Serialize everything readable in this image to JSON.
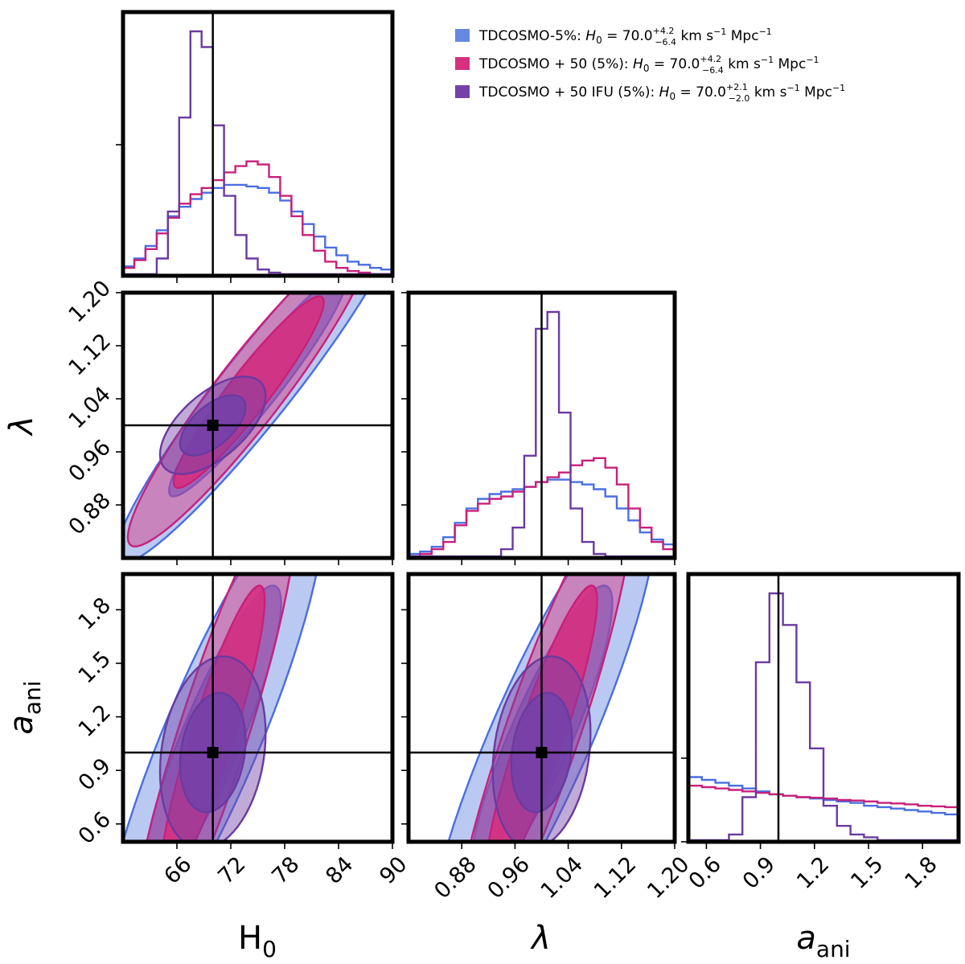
{
  "chart_data": {
    "type": "corner",
    "parameters": [
      "H0",
      "lambda",
      "a_ani"
    ],
    "axis_labels": {
      "H0": {
        "main": "H",
        "sub": "0",
        "italic": false
      },
      "lambda": {
        "main": "λ",
        "sub": "",
        "italic": true
      },
      "a_ani": {
        "main": "a",
        "sub": "ani",
        "italic": true
      }
    },
    "ranges": {
      "H0": [
        60,
        90
      ],
      "lambda": [
        0.8,
        1.2
      ],
      "a_ani": [
        0.5,
        2.0
      ]
    },
    "ticks": {
      "H0": [
        "66",
        "72",
        "78",
        "84",
        "90"
      ],
      "lambda": [
        "0.88",
        "0.96",
        "1.04",
        "1.12",
        "1.20"
      ],
      "a_ani": [
        "0.6",
        "0.9",
        "1.2",
        "1.5",
        "1.8"
      ]
    },
    "truth": {
      "H0": 70,
      "lambda": 1.0,
      "a_ani": 1.0
    },
    "series": [
      {
        "name": "TDCOSMO-5%",
        "legend_prefix": "TDCOSMO-5%: ",
        "h0": "70.0",
        "err_plus": "+4.2",
        "err_minus": "−6.4",
        "color": "#6688e0",
        "edge": "#4a6ee0",
        "hist": {
          "H0": {
            "edges": [
              60,
              90
            ],
            "counts": [
              0.05,
              0.1,
              0.18,
              0.28,
              0.37,
              0.43,
              0.48,
              0.52,
              0.55,
              0.57,
              0.57,
              0.56,
              0.55,
              0.52,
              0.47,
              0.4,
              0.32,
              0.24,
              0.17,
              0.12,
              0.08,
              0.06,
              0.04,
              0.03
            ]
          },
          "lambda": {
            "edges": [
              0.8,
              1.2
            ],
            "counts": [
              0.01,
              0.02,
              0.04,
              0.08,
              0.14,
              0.2,
              0.24,
              0.26,
              0.27,
              0.28,
              0.29,
              0.31,
              0.32,
              0.32,
              0.31,
              0.3,
              0.28,
              0.25,
              0.2,
              0.15,
              0.1,
              0.07,
              0.05
            ]
          },
          "a_ani": {
            "edges": [
              0.5,
              2.0
            ],
            "counts": [
              0.22,
              0.21,
              0.2,
              0.19,
              0.18,
              0.17,
              0.16,
              0.155,
              0.15,
              0.145,
              0.14,
              0.135,
              0.13,
              0.12,
              0.115,
              0.11,
              0.105,
              0.1,
              0.095,
              0.09
            ]
          }
        },
        "contours": {
          "H0_lambda": {
            "mx": 75,
            "my": 1.06,
            "sx": 6.5,
            "sy": 0.11,
            "rho": 0.95
          },
          "H0_a": {
            "mx": 70,
            "my": 1.1,
            "sx": 5.0,
            "sy": 0.55,
            "rho": 0.88
          },
          "lambda_a": {
            "mx": 1.0,
            "my": 1.1,
            "sx": 0.07,
            "sy": 0.55,
            "rho": 0.88
          }
        }
      },
      {
        "name": "TDCOSMO + 50 (5%)",
        "legend_prefix": "TDCOSMO + 50 (5%): ",
        "h0": "70.0",
        "err_plus": "+4.2",
        "err_minus": "−6.4",
        "color": "#d6307f",
        "edge": "#c8207a",
        "hist": {
          "H0": {
            "edges": [
              60,
              90
            ],
            "counts": [
              0.04,
              0.09,
              0.16,
              0.26,
              0.36,
              0.45,
              0.51,
              0.55,
              0.6,
              0.65,
              0.69,
              0.72,
              0.7,
              0.62,
              0.5,
              0.37,
              0.25,
              0.15,
              0.08,
              0.04,
              0.02,
              0.01,
              0.0,
              0.0
            ]
          },
          "lambda": {
            "edges": [
              0.8,
              1.2
            ],
            "counts": [
              0.0,
              0.01,
              0.03,
              0.06,
              0.13,
              0.19,
              0.22,
              0.24,
              0.25,
              0.27,
              0.29,
              0.31,
              0.33,
              0.35,
              0.38,
              0.4,
              0.41,
              0.37,
              0.3,
              0.2,
              0.12,
              0.06,
              0.03
            ]
          },
          "a_ani": {
            "edges": [
              0.5,
              2.0
            ],
            "counts": [
              0.19,
              0.185,
              0.18,
              0.175,
              0.17,
              0.165,
              0.16,
              0.155,
              0.15,
              0.148,
              0.145,
              0.14,
              0.138,
              0.135,
              0.13,
              0.128,
              0.125,
              0.12,
              0.118,
              0.115
            ]
          }
        },
        "contours": {
          "H0_lambda": {
            "mx": 74,
            "my": 1.05,
            "sx": 5.5,
            "sy": 0.095,
            "rho": 0.94
          },
          "H0_a": {
            "mx": 70,
            "my": 1.1,
            "sx": 3.8,
            "sy": 0.55,
            "rho": 0.9
          },
          "lambda_a": {
            "mx": 1.0,
            "my": 1.1,
            "sx": 0.055,
            "sy": 0.55,
            "rho": 0.9
          }
        }
      },
      {
        "name": "TDCOSMO + 50 IFU (5%)",
        "legend_prefix": "TDCOSMO + 50 IFU (5%): ",
        "h0": "70.0",
        "err_plus": "+2.1",
        "err_minus": "−2.0",
        "color": "#7442a8",
        "edge": "#6a3aa0",
        "hist": {
          "H0": {
            "edges": [
              60,
              90
            ],
            "counts": [
              0.0,
              0.0,
              0.0,
              0.1,
              0.4,
              1.0,
              1.55,
              1.45,
              0.95,
              0.5,
              0.25,
              0.1,
              0.03,
              0.01,
              0.0,
              0.0,
              0.0,
              0.0,
              0.0,
              0.0,
              0.0,
              0.0,
              0.0,
              0.0
            ]
          },
          "lambda": {
            "edges": [
              0.8,
              1.2
            ],
            "counts": [
              0.0,
              0.0,
              0.0,
              0.0,
              0.0,
              0.0,
              0.0,
              0.0,
              0.03,
              0.12,
              0.42,
              0.95,
              1.02,
              0.6,
              0.2,
              0.06,
              0.01,
              0.0,
              0.0,
              0.0,
              0.0,
              0.0,
              0.0
            ]
          },
          "a_ani": {
            "edges": [
              0.5,
              2.0
            ],
            "counts": [
              0.0,
              0.0,
              0.0,
              0.02,
              0.15,
              0.62,
              0.86,
              0.75,
              0.55,
              0.32,
              0.12,
              0.05,
              0.02,
              0.01,
              0.0,
              0.0,
              0.0,
              0.0,
              0.0,
              0.0
            ]
          }
        },
        "contours": {
          "H0_lambda": {
            "mx": 70,
            "my": 1.0,
            "sx": 2.4,
            "sy": 0.03,
            "rho": 0.6
          },
          "H0_a": {
            "mx": 70,
            "my": 1.0,
            "sx": 2.4,
            "sy": 0.22,
            "rho": 0.2
          },
          "lambda_a": {
            "mx": 1.0,
            "my": 1.0,
            "sx": 0.03,
            "sy": 0.22,
            "rho": 0.2
          }
        }
      }
    ],
    "legend_units": " km s",
    "legend_units_sup1": "−1",
    "legend_units_mid": " Mpc",
    "legend_units_sup2": "−1",
    "legend_h_symbol": "H",
    "legend_h_sub": "0",
    "legend_eq": " = ",
    "legend_placement": "top-right"
  }
}
